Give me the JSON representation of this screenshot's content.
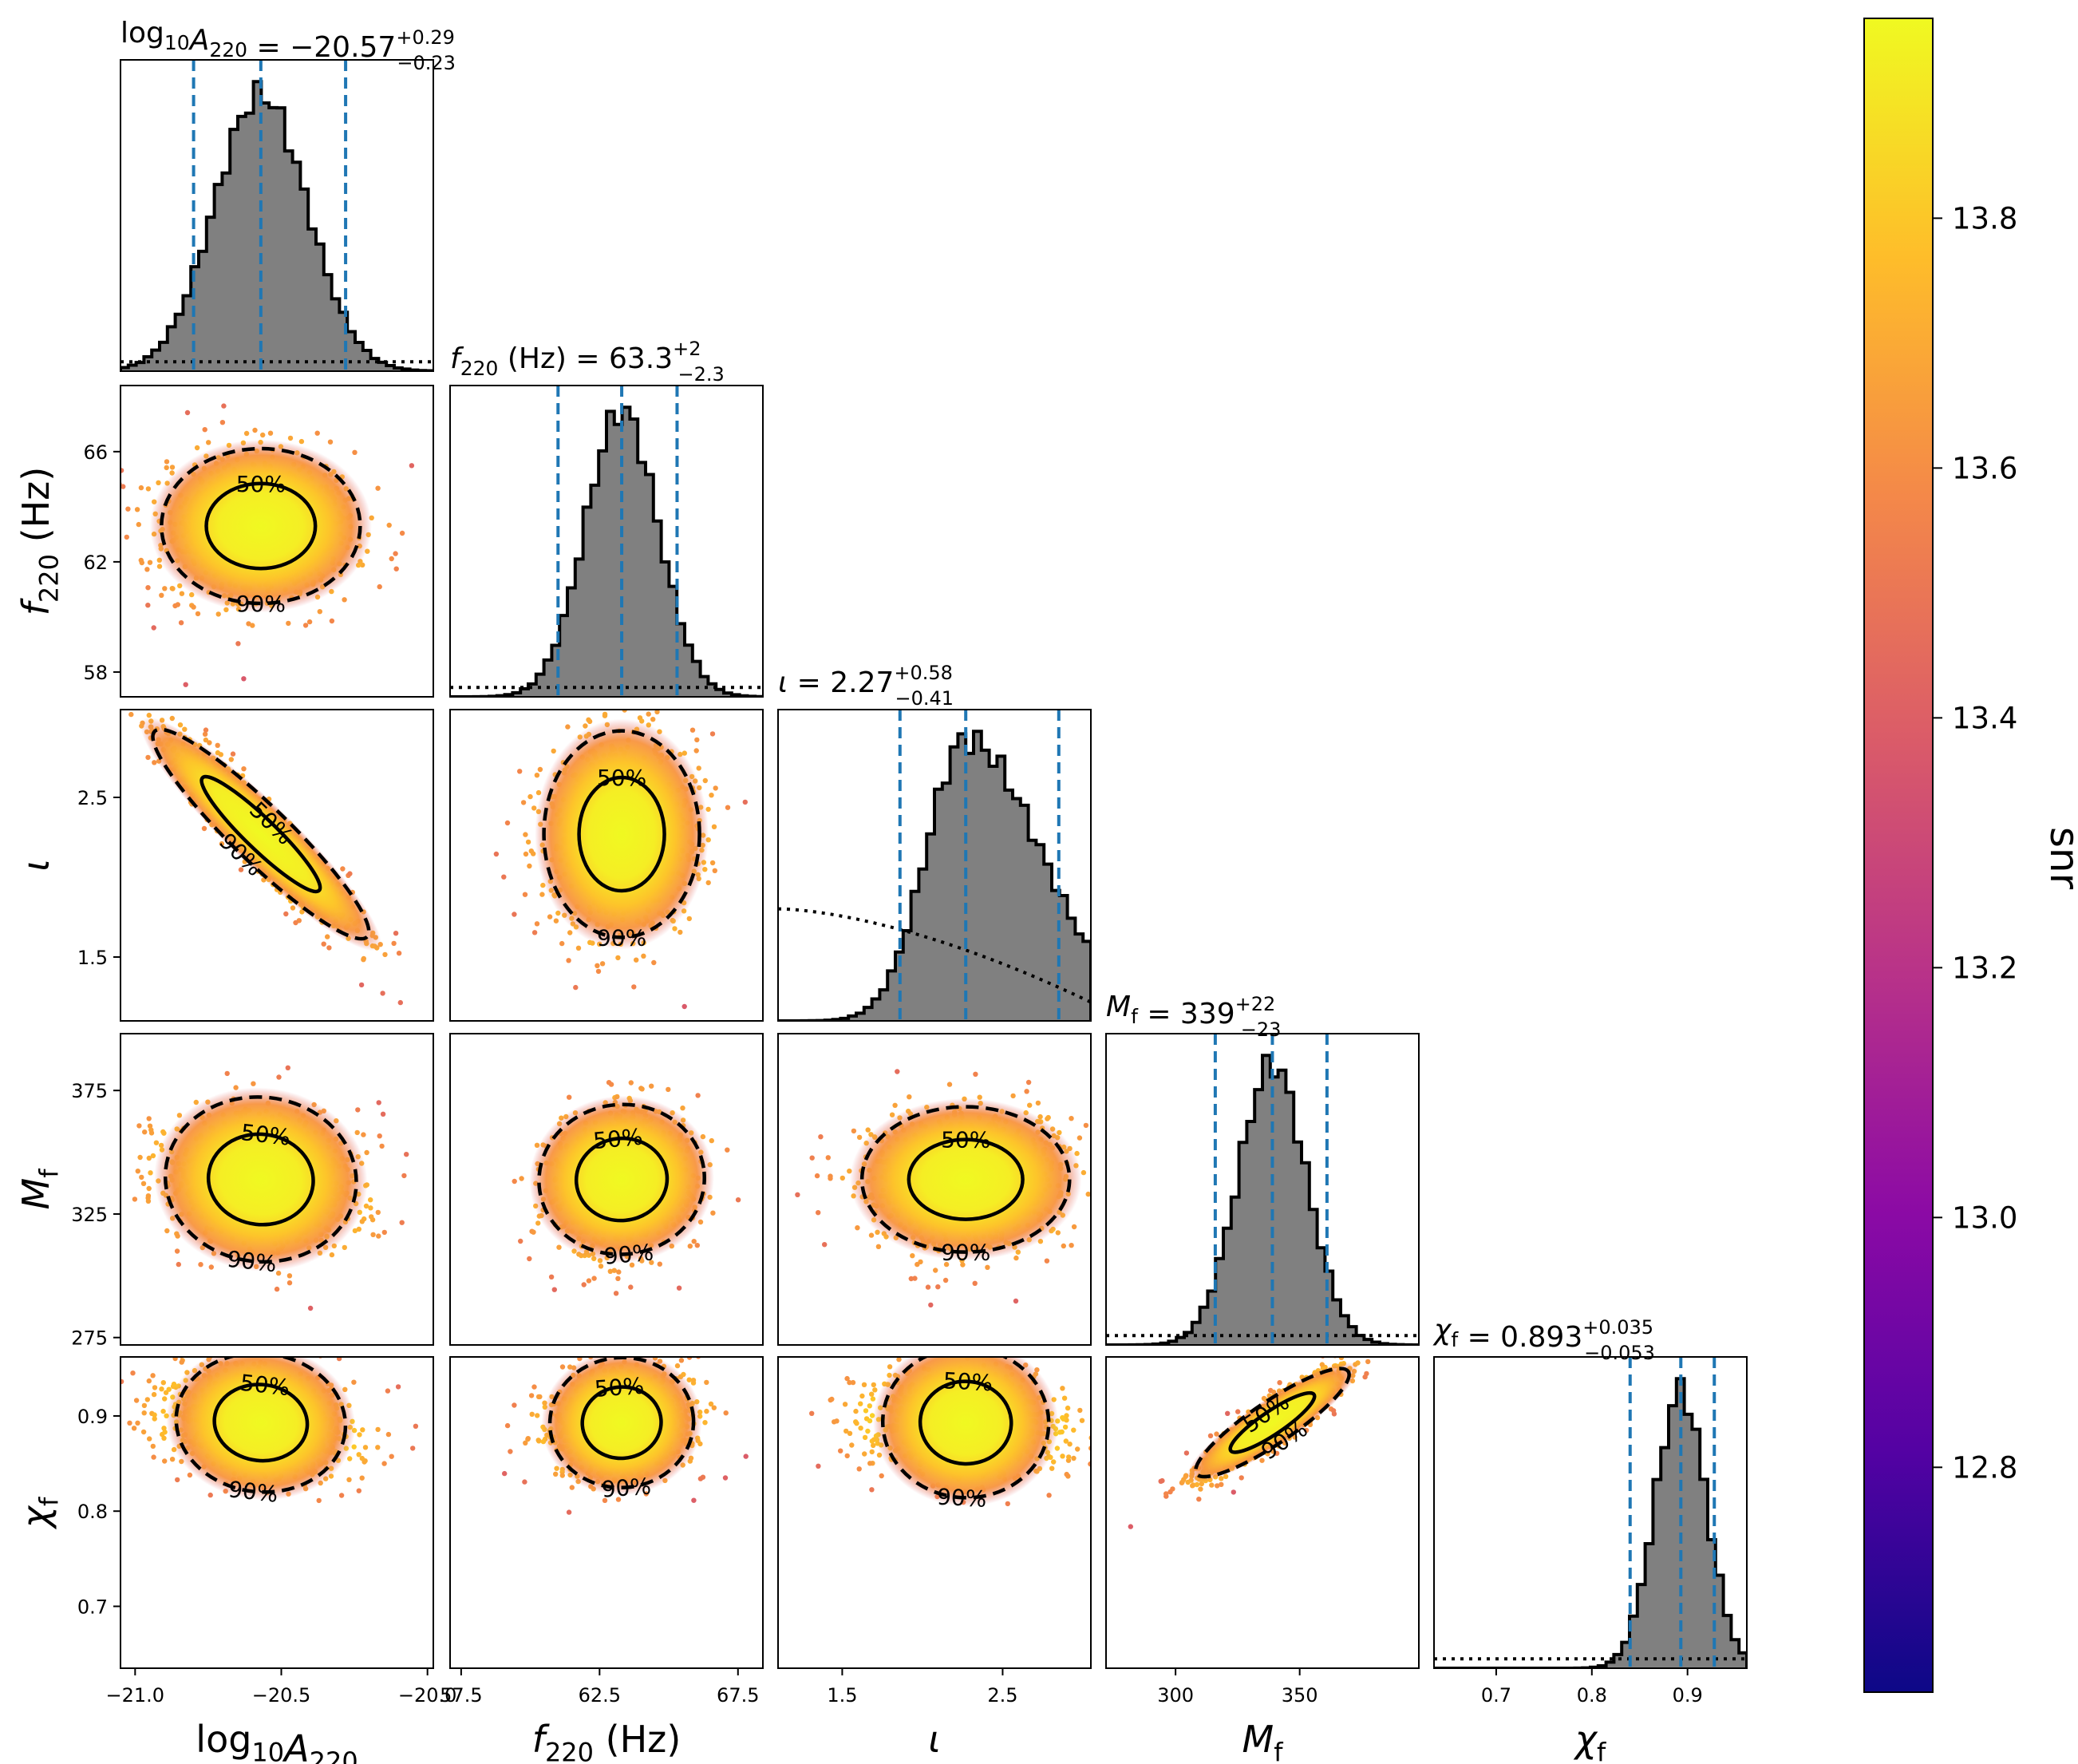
{
  "chart_data": {
    "type": "corner",
    "parameters": [
      {
        "key": "logA",
        "label_base": "log",
        "label_sub1": "10",
        "label_main": "A",
        "label_sub2": "220",
        "label_units": "",
        "range": [
          -21.05,
          -19.98
        ],
        "ticks": [
          -21.0,
          -20.5,
          -20.0
        ],
        "tick_labels": [
          "−21.0",
          "−20.5",
          "−20.0"
        ],
        "median": -20.57,
        "upper_err": 0.29,
        "lower_err": 0.23,
        "title": {
          "lhs": "= −20.57",
          "sup": "+0.29",
          "sub": "−0.23"
        }
      },
      {
        "key": "f220",
        "label_base": "",
        "label_sub1": "",
        "label_main": "f",
        "label_sub2": "220",
        "label_units": " (Hz)",
        "range": [
          57.1,
          68.4
        ],
        "ticks": [
          57.5,
          62.5,
          67.5
        ],
        "tick_labels": [
          "57.5",
          "62.5",
          "67.5"
        ],
        "ticks_y": [
          58,
          62,
          66
        ],
        "tick_labels_y": [
          "58",
          "62",
          "66"
        ],
        "median": 63.3,
        "upper_err": 2.0,
        "lower_err": 2.3,
        "title": {
          "lhs": "= 63.3",
          "sup": "+2",
          "sub": "−2.3"
        }
      },
      {
        "key": "iota",
        "label_base": "",
        "label_sub1": "",
        "label_main": "ι",
        "label_sub2": "",
        "label_units": "",
        "range": [
          1.1,
          3.05
        ],
        "ticks": [
          1.5,
          2.5
        ],
        "tick_labels": [
          "1.5",
          "2.5"
        ],
        "median": 2.27,
        "upper_err": 0.58,
        "lower_err": 0.41,
        "title": {
          "lhs": "= 2.27",
          "sup": "+0.58",
          "sub": "−0.41"
        }
      },
      {
        "key": "Mf",
        "label_base": "",
        "label_sub1": "",
        "label_main": "M",
        "label_sub2": "f",
        "label_units": "",
        "range": [
          272,
          398
        ],
        "ticks": [
          300,
          350
        ],
        "tick_labels": [
          "300",
          "350"
        ],
        "ticks_y": [
          275,
          325,
          375
        ],
        "tick_labels_y": [
          "275",
          "325",
          "375"
        ],
        "median": 339,
        "upper_err": 22,
        "lower_err": 23,
        "title": {
          "lhs": "= 339",
          "sup": "+22",
          "sub": "−23"
        }
      },
      {
        "key": "chif",
        "label_base": "",
        "label_sub1": "",
        "label_main": "χ",
        "label_sub2": "f",
        "label_units": "",
        "range": [
          0.635,
          0.962
        ],
        "ticks": [
          0.7,
          0.8,
          0.9
        ],
        "tick_labels": [
          "0.7",
          "0.8",
          "0.9"
        ],
        "median": 0.893,
        "upper_err": 0.035,
        "lower_err": 0.053,
        "title": {
          "lhs": "= 0.893",
          "sup": "+0.035",
          "sub": "−0.053"
        }
      }
    ],
    "histogram_bars_color": "#808080",
    "quantile_line_color": "#1f77b4",
    "contour_labels": [
      "50%",
      "90%"
    ],
    "correlations": {
      "f220|logA": 0.0,
      "iota|logA": -0.93,
      "iota|f220": 0.0,
      "Mf|logA": -0.15,
      "Mf|f220": 0.1,
      "Mf|iota": 0.0,
      "chif|logA": -0.2,
      "chif|f220": 0.1,
      "chif|iota": -0.1,
      "chif|Mf": 0.9
    },
    "colorbar": {
      "label": "snr",
      "range": [
        12.62,
        13.96
      ],
      "ticks": [
        12.8,
        13.0,
        13.2,
        13.4,
        13.6,
        13.8
      ],
      "tick_labels": [
        "12.8",
        "13.0",
        "13.2",
        "13.4",
        "13.6",
        "13.8"
      ],
      "colormap": "plasma",
      "stops": [
        "#0d0887",
        "#5302a3",
        "#8b0aa5",
        "#b83289",
        "#db5c68",
        "#f48849",
        "#febd2a",
        "#f0f921"
      ]
    }
  }
}
